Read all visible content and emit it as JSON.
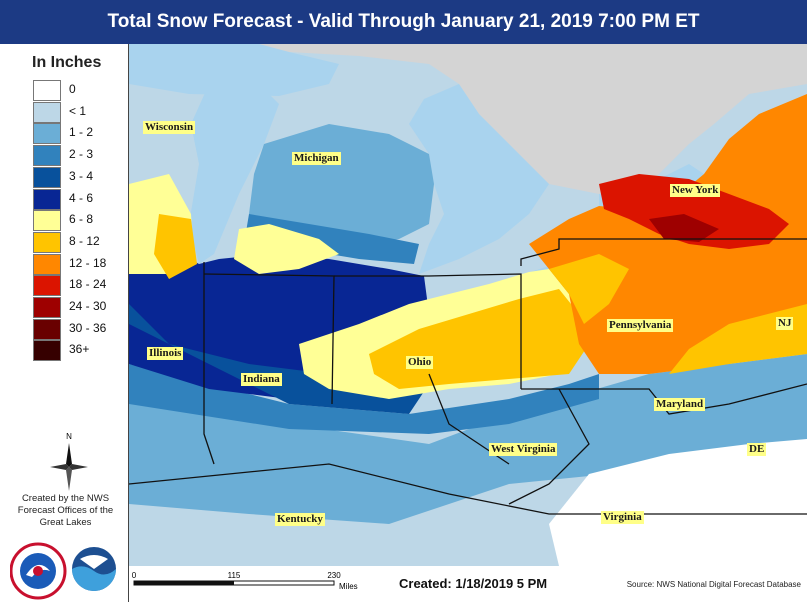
{
  "title": "Total Snow Forecast - Valid Through January 21, 2019 7:00 PM ET",
  "legend": {
    "title": "In Inches",
    "items": [
      {
        "label": "0",
        "color": "#ffffff"
      },
      {
        "label": "< 1",
        "color": "#bdd7e7"
      },
      {
        "label": "1 - 2",
        "color": "#6baed6"
      },
      {
        "label": "2 - 3",
        "color": "#3182bd"
      },
      {
        "label": "3 - 4",
        "color": "#08519c"
      },
      {
        "label": "4 - 6",
        "color": "#082694"
      },
      {
        "label": "6 - 8",
        "color": "#ffff96"
      },
      {
        "label": "8 - 12",
        "color": "#ffc400"
      },
      {
        "label": "12 - 18",
        "color": "#ff8700"
      },
      {
        "label": "18 - 24",
        "color": "#db1400"
      },
      {
        "label": "24 - 30",
        "color": "#9e0000"
      },
      {
        "label": "30 - 36",
        "color": "#690000"
      },
      {
        "label": "36+",
        "color": "#360000"
      }
    ]
  },
  "compass_label": "N",
  "credit": "Created by the NWS Forecast Offices of the Great Lakes",
  "states": [
    {
      "name": "Wisconsin"
    },
    {
      "name": "Michigan"
    },
    {
      "name": "New York"
    },
    {
      "name": "Pennsylvania"
    },
    {
      "name": "NJ"
    },
    {
      "name": "Ohio"
    },
    {
      "name": "Illinois"
    },
    {
      "name": "Indiana"
    },
    {
      "name": "Maryland"
    },
    {
      "name": "West Virginia"
    },
    {
      "name": "DE"
    },
    {
      "name": "Kentucky"
    },
    {
      "name": "Virginia"
    }
  ],
  "scale": {
    "ticks": [
      "0",
      "115",
      "230"
    ],
    "unit": "Miles"
  },
  "created": "Created: 1/18/2019 5 PM",
  "source": "Source: NWS National Digital Forecast Database",
  "colors": {
    "lake": "#a9d3ee",
    "canada": "#d4d4d4",
    "title_bg": "#1c3a84"
  }
}
